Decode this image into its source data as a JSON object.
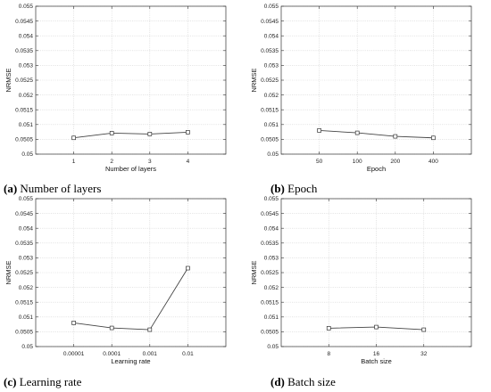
{
  "chart_data": [
    {
      "type": "line",
      "caption_letter": "(a)",
      "caption_text": "Number of layers",
      "xlabel": "Number of layers",
      "ylabel": "NRMSE",
      "categories": [
        "1",
        "2",
        "3",
        "4"
      ],
      "values": [
        0.05055,
        0.05071,
        0.05068,
        0.05074
      ],
      "ylim": [
        0.05,
        0.055
      ],
      "yticks": [
        "0.05",
        "0.0505",
        "0.051",
        "0.0515",
        "0.052",
        "0.0525",
        "0.053",
        "0.0535",
        "0.054",
        "0.0545",
        "0.055"
      ],
      "grid": true,
      "marker": "square"
    },
    {
      "type": "line",
      "caption_letter": "(b)",
      "caption_text": "Epoch",
      "xlabel": "Epoch",
      "ylabel": "NRMSE",
      "categories": [
        "50",
        "100",
        "200",
        "400"
      ],
      "values": [
        0.0508,
        0.05072,
        0.0506,
        0.05055
      ],
      "ylim": [
        0.05,
        0.055
      ],
      "yticks": [
        "0.05",
        "0.0505",
        "0.051",
        "0.0515",
        "0.052",
        "0.0525",
        "0.053",
        "0.0535",
        "0.054",
        "0.0545",
        "0.055"
      ],
      "grid": true,
      "marker": "square"
    },
    {
      "type": "line",
      "caption_letter": "(c)",
      "caption_text": "Learning rate",
      "xlabel": "Learning rate",
      "ylabel": "NRMSE",
      "categories": [
        "0.00001",
        "0.0001",
        "0.001",
        "0.01"
      ],
      "values": [
        0.0508,
        0.05063,
        0.05057,
        0.05265
      ],
      "ylim": [
        0.05,
        0.055
      ],
      "yticks": [
        "0.05",
        "0.0505",
        "0.051",
        "0.0515",
        "0.052",
        "0.0525",
        "0.053",
        "0.0535",
        "0.054",
        "0.0545",
        "0.055"
      ],
      "grid": true,
      "marker": "square"
    },
    {
      "type": "line",
      "caption_letter": "(d)",
      "caption_text": "Batch size",
      "xlabel": "Batch size",
      "ylabel": "NRMSE",
      "categories": [
        "8",
        "16",
        "32"
      ],
      "values": [
        0.05062,
        0.05066,
        0.05057
      ],
      "ylim": [
        0.05,
        0.055
      ],
      "yticks": [
        "0.05",
        "0.0505",
        "0.051",
        "0.0515",
        "0.052",
        "0.0525",
        "0.053",
        "0.0535",
        "0.054",
        "0.0545",
        "0.055"
      ],
      "grid": true,
      "marker": "square"
    }
  ]
}
